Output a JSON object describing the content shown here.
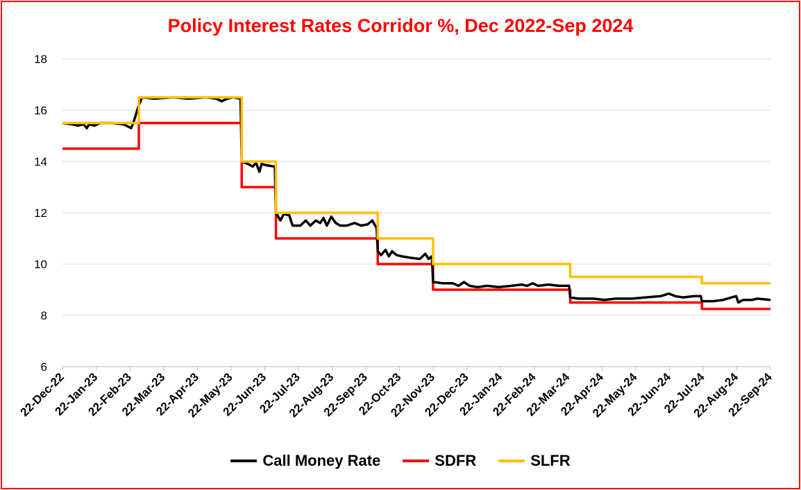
{
  "chart_data": {
    "type": "line",
    "title": "Policy Interest Rates Corridor %,  Dec 2022-Sep 2024",
    "title_color": "#ff0000",
    "border_color": "#ff0000",
    "ylim": [
      6,
      18
    ],
    "yticks": [
      6,
      8,
      10,
      12,
      14,
      16,
      18
    ],
    "grid": "horizontal",
    "legend_position": "bottom",
    "x_start": "2022-12-22",
    "x_end": "2024-09-22",
    "xticks": [
      "22-Dec-22",
      "22-Jan-23",
      "22-Feb-23",
      "22-Mar-23",
      "22-Apr-23",
      "22-May-23",
      "22-Jun-23",
      "22-Jul-23",
      "22-Aug-23",
      "22-Sep-23",
      "22-Oct-23",
      "22-Nov-23",
      "22-Dec-23",
      "22-Jan-24",
      "22-Feb-24",
      "22-Mar-24",
      "22-Apr-24",
      "22-May-24",
      "22-Jun-24",
      "22-Jul-24",
      "22-Aug-24",
      "22-Sep-24"
    ],
    "series": [
      {
        "name": "Call Money Rate",
        "color": "#000000",
        "step": false,
        "points": [
          [
            "2022-12-22",
            15.5
          ],
          [
            "2022-12-31",
            15.45
          ],
          [
            "2023-01-05",
            15.4
          ],
          [
            "2023-01-10",
            15.45
          ],
          [
            "2023-01-13",
            15.3
          ],
          [
            "2023-01-15",
            15.45
          ],
          [
            "2023-01-20",
            15.4
          ],
          [
            "2023-01-25",
            15.5
          ],
          [
            "2023-02-05",
            15.5
          ],
          [
            "2023-02-15",
            15.45
          ],
          [
            "2023-02-20",
            15.35
          ],
          [
            "2023-02-22",
            15.3
          ],
          [
            "2023-02-24",
            15.5
          ],
          [
            "2023-03-01",
            16.2
          ],
          [
            "2023-03-04",
            16.5
          ],
          [
            "2023-03-15",
            16.45
          ],
          [
            "2023-04-01",
            16.5
          ],
          [
            "2023-04-15",
            16.45
          ],
          [
            "2023-05-01",
            16.5
          ],
          [
            "2023-05-10",
            16.45
          ],
          [
            "2023-05-15",
            16.35
          ],
          [
            "2023-05-20",
            16.45
          ],
          [
            "2023-05-25",
            16.5
          ],
          [
            "2023-06-01",
            16.45
          ],
          [
            "2023-06-02",
            14.0
          ],
          [
            "2023-06-08",
            13.9
          ],
          [
            "2023-06-12",
            13.8
          ],
          [
            "2023-06-15",
            13.95
          ],
          [
            "2023-06-18",
            13.6
          ],
          [
            "2023-06-20",
            13.9
          ],
          [
            "2023-06-25",
            13.85
          ],
          [
            "2023-07-02",
            13.8
          ],
          [
            "2023-07-03",
            12.0
          ],
          [
            "2023-07-07",
            11.7
          ],
          [
            "2023-07-10",
            11.95
          ],
          [
            "2023-07-15",
            11.9
          ],
          [
            "2023-07-18",
            11.5
          ],
          [
            "2023-07-25",
            11.5
          ],
          [
            "2023-07-30",
            11.7
          ],
          [
            "2023-08-03",
            11.5
          ],
          [
            "2023-08-08",
            11.7
          ],
          [
            "2023-08-12",
            11.6
          ],
          [
            "2023-08-15",
            11.8
          ],
          [
            "2023-08-18",
            11.5
          ],
          [
            "2023-08-22",
            11.85
          ],
          [
            "2023-08-26",
            11.6
          ],
          [
            "2023-08-30",
            11.5
          ],
          [
            "2023-09-05",
            11.5
          ],
          [
            "2023-09-12",
            11.6
          ],
          [
            "2023-09-18",
            11.5
          ],
          [
            "2023-09-24",
            11.55
          ],
          [
            "2023-09-28",
            11.7
          ],
          [
            "2023-10-02",
            11.4
          ],
          [
            "2023-10-03",
            10.5
          ],
          [
            "2023-10-06",
            10.35
          ],
          [
            "2023-10-10",
            10.55
          ],
          [
            "2023-10-13",
            10.3
          ],
          [
            "2023-10-16",
            10.5
          ],
          [
            "2023-10-20",
            10.35
          ],
          [
            "2023-10-25",
            10.3
          ],
          [
            "2023-11-01",
            10.25
          ],
          [
            "2023-11-10",
            10.2
          ],
          [
            "2023-11-15",
            10.4
          ],
          [
            "2023-11-18",
            10.2
          ],
          [
            "2023-11-21",
            10.3
          ],
          [
            "2023-11-22",
            9.3
          ],
          [
            "2023-12-01",
            9.25
          ],
          [
            "2023-12-10",
            9.25
          ],
          [
            "2023-12-15",
            9.15
          ],
          [
            "2023-12-20",
            9.3
          ],
          [
            "2023-12-25",
            9.15
          ],
          [
            "2024-01-01",
            9.1
          ],
          [
            "2024-01-10",
            9.15
          ],
          [
            "2024-01-20",
            9.1
          ],
          [
            "2024-02-01",
            9.15
          ],
          [
            "2024-02-10",
            9.2
          ],
          [
            "2024-02-15",
            9.15
          ],
          [
            "2024-02-20",
            9.25
          ],
          [
            "2024-02-25",
            9.15
          ],
          [
            "2024-03-05",
            9.2
          ],
          [
            "2024-03-15",
            9.15
          ],
          [
            "2024-03-24",
            9.15
          ],
          [
            "2024-03-25",
            8.7
          ],
          [
            "2024-04-01",
            8.65
          ],
          [
            "2024-04-15",
            8.65
          ],
          [
            "2024-04-25",
            8.6
          ],
          [
            "2024-05-05",
            8.65
          ],
          [
            "2024-05-20",
            8.65
          ],
          [
            "2024-06-01",
            8.7
          ],
          [
            "2024-06-15",
            8.75
          ],
          [
            "2024-06-22",
            8.85
          ],
          [
            "2024-06-28",
            8.75
          ],
          [
            "2024-07-05",
            8.7
          ],
          [
            "2024-07-15",
            8.75
          ],
          [
            "2024-07-21",
            8.75
          ],
          [
            "2024-07-22",
            8.55
          ],
          [
            "2024-08-01",
            8.55
          ],
          [
            "2024-08-10",
            8.6
          ],
          [
            "2024-08-18",
            8.7
          ],
          [
            "2024-08-22",
            8.75
          ],
          [
            "2024-08-24",
            8.5
          ],
          [
            "2024-08-28",
            8.6
          ],
          [
            "2024-09-05",
            8.6
          ],
          [
            "2024-09-10",
            8.65
          ],
          [
            "2024-09-22",
            8.6
          ]
        ]
      },
      {
        "name": "SDFR",
        "color": "#ff0000",
        "step": true,
        "points": [
          [
            "2022-12-22",
            14.5
          ],
          [
            "2023-03-01",
            15.5
          ],
          [
            "2023-06-02",
            13.0
          ],
          [
            "2023-07-03",
            11.0
          ],
          [
            "2023-10-03",
            10.0
          ],
          [
            "2023-11-22",
            9.0
          ],
          [
            "2024-03-25",
            8.5
          ],
          [
            "2024-07-22",
            8.25
          ],
          [
            "2024-09-22",
            8.25
          ]
        ]
      },
      {
        "name": "SLFR",
        "color": "#ffc000",
        "step": true,
        "points": [
          [
            "2022-12-22",
            15.5
          ],
          [
            "2023-03-01",
            16.5
          ],
          [
            "2023-06-02",
            14.0
          ],
          [
            "2023-07-03",
            12.0
          ],
          [
            "2023-10-03",
            11.0
          ],
          [
            "2023-11-22",
            10.0
          ],
          [
            "2024-03-25",
            9.5
          ],
          [
            "2024-07-22",
            9.25
          ],
          [
            "2024-09-22",
            9.25
          ]
        ]
      }
    ]
  }
}
